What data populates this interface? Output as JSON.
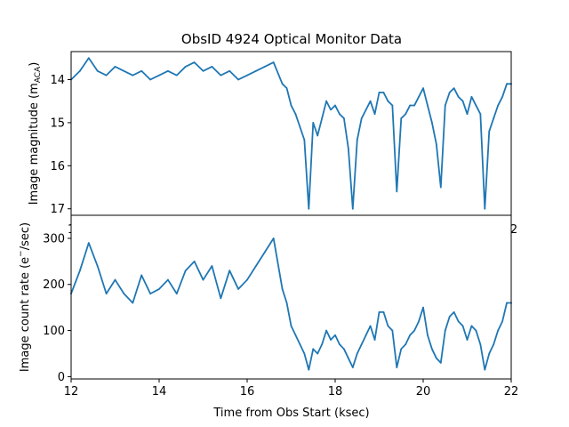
{
  "chart_data": [
    {
      "type": "line",
      "title": "ObsID 4924 Optical Monitor Data",
      "xlabel": "",
      "ylabel": "Image magnitude (m_ACA)",
      "ylabel_main": "Image magnitude (m",
      "ylabel_sub": "ACA",
      "ylabel_close": ")",
      "xlim": [
        12,
        22
      ],
      "ylim": [
        17.15,
        13.35
      ],
      "y_inverted": true,
      "yticks": [
        14,
        15,
        16,
        17
      ],
      "ytick_labels": [
        "14",
        "15",
        "16",
        "17"
      ],
      "xtick_labels_visible": [
        "1",
        "2"
      ],
      "series": [
        {
          "name": "magnitude",
          "color": "#1f77b4",
          "x": [
            12.0,
            12.2,
            12.4,
            12.6,
            12.8,
            13.0,
            13.2,
            13.4,
            13.6,
            13.8,
            14.0,
            14.2,
            14.4,
            14.6,
            14.8,
            15.0,
            15.2,
            15.4,
            15.6,
            15.8,
            16.0,
            16.2,
            16.4,
            16.6,
            16.8,
            16.9,
            17.0,
            17.1,
            17.2,
            17.3,
            17.4,
            17.5,
            17.6,
            17.7,
            17.8,
            17.9,
            18.0,
            18.1,
            18.2,
            18.3,
            18.4,
            18.5,
            18.6,
            18.7,
            18.8,
            18.9,
            19.0,
            19.1,
            19.2,
            19.3,
            19.4,
            19.5,
            19.6,
            19.7,
            19.8,
            19.9,
            20.0,
            20.1,
            20.2,
            20.3,
            20.4,
            20.5,
            20.6,
            20.7,
            20.8,
            20.9,
            21.0,
            21.1,
            21.2,
            21.3,
            21.4,
            21.5,
            21.6,
            21.7,
            21.8,
            21.9,
            22.0
          ],
          "values": [
            14.0,
            13.8,
            13.5,
            13.8,
            13.9,
            13.7,
            13.8,
            13.9,
            13.8,
            14.0,
            13.9,
            13.8,
            13.9,
            13.7,
            13.6,
            13.8,
            13.7,
            13.9,
            13.8,
            14.0,
            13.9,
            13.8,
            13.7,
            13.6,
            14.1,
            14.2,
            14.6,
            14.8,
            15.1,
            15.4,
            17.0,
            15.0,
            15.3,
            14.9,
            14.5,
            14.7,
            14.6,
            14.8,
            14.9,
            15.6,
            17.0,
            15.4,
            14.9,
            14.7,
            14.5,
            14.8,
            14.3,
            14.3,
            14.5,
            14.6,
            16.6,
            14.9,
            14.8,
            14.6,
            14.6,
            14.4,
            14.2,
            14.6,
            15.0,
            15.5,
            16.5,
            14.6,
            14.3,
            14.2,
            14.4,
            14.5,
            14.8,
            14.4,
            14.6,
            14.8,
            17.0,
            15.2,
            14.9,
            14.6,
            14.4,
            14.1,
            14.1
          ]
        }
      ]
    },
    {
      "type": "line",
      "title": "",
      "xlabel": "Time from Obs Start (ksec)",
      "ylabel": "Image count rate (e⁻/sec)",
      "ylabel_main": "Image count rate (e",
      "ylabel_sup": "−",
      "ylabel_close": "/sec)",
      "xlim": [
        12,
        22
      ],
      "ylim": [
        -5,
        350
      ],
      "xticks": [
        12,
        14,
        16,
        18,
        20,
        22
      ],
      "xtick_labels": [
        "12",
        "14",
        "16",
        "18",
        "20",
        "22"
      ],
      "yticks": [
        0,
        100,
        200,
        300
      ],
      "ytick_labels": [
        "0",
        "100",
        "200",
        "300"
      ],
      "series": [
        {
          "name": "count rate",
          "color": "#1f77b4",
          "x": [
            12.0,
            12.2,
            12.4,
            12.6,
            12.8,
            13.0,
            13.2,
            13.4,
            13.6,
            13.8,
            14.0,
            14.2,
            14.4,
            14.6,
            14.8,
            15.0,
            15.2,
            15.4,
            15.6,
            15.8,
            16.0,
            16.2,
            16.4,
            16.6,
            16.8,
            16.9,
            17.0,
            17.1,
            17.2,
            17.3,
            17.4,
            17.5,
            17.6,
            17.7,
            17.8,
            17.9,
            18.0,
            18.1,
            18.2,
            18.3,
            18.4,
            18.5,
            18.6,
            18.7,
            18.8,
            18.9,
            19.0,
            19.1,
            19.2,
            19.3,
            19.4,
            19.5,
            19.6,
            19.7,
            19.8,
            19.9,
            20.0,
            20.1,
            20.2,
            20.3,
            20.4,
            20.5,
            20.6,
            20.7,
            20.8,
            20.9,
            21.0,
            21.1,
            21.2,
            21.3,
            21.4,
            21.5,
            21.6,
            21.7,
            21.8,
            21.9,
            22.0
          ],
          "values": [
            180,
            230,
            290,
            240,
            180,
            210,
            180,
            160,
            220,
            180,
            190,
            210,
            180,
            230,
            250,
            210,
            240,
            170,
            230,
            190,
            210,
            240,
            270,
            300,
            190,
            160,
            110,
            90,
            70,
            50,
            15,
            60,
            50,
            70,
            100,
            80,
            90,
            70,
            60,
            40,
            20,
            50,
            70,
            90,
            110,
            80,
            140,
            140,
            110,
            100,
            20,
            60,
            70,
            90,
            100,
            120,
            150,
            90,
            60,
            40,
            30,
            100,
            130,
            140,
            120,
            110,
            80,
            110,
            100,
            70,
            15,
            50,
            70,
            100,
            120,
            160,
            160
          ]
        }
      ]
    }
  ]
}
